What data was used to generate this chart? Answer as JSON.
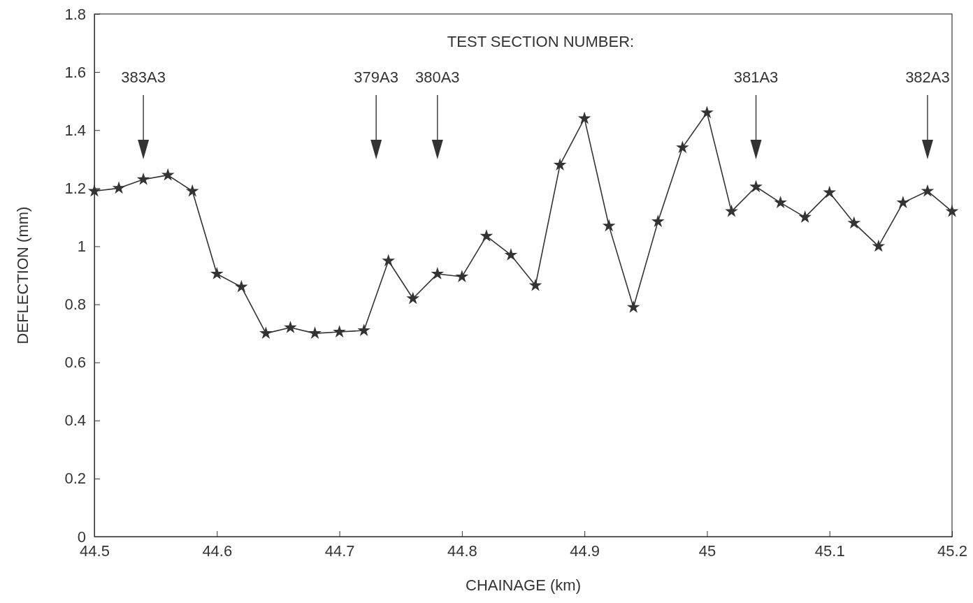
{
  "chart_data": {
    "type": "line",
    "xlabel": "CHAINAGE (km)",
    "ylabel": "DEFLECTION (mm)",
    "x": [
      44.5,
      44.52,
      44.54,
      44.56,
      44.58,
      44.6,
      44.62,
      44.64,
      44.66,
      44.68,
      44.7,
      44.72,
      44.74,
      44.76,
      44.78,
      44.8,
      44.82,
      44.84,
      44.86,
      44.88,
      44.9,
      44.92,
      44.94,
      44.96,
      44.98,
      45,
      45.02,
      45.04,
      45.06,
      45.08,
      45.1,
      45.12,
      45.14,
      45.16,
      45.18,
      45.2
    ],
    "series": [
      {
        "color": "#333333",
        "values": [
          1.19,
          1.2,
          1.23,
          1.245,
          1.19,
          0.905,
          0.86,
          0.7,
          0.72,
          0.7,
          0.705,
          0.71,
          0.95,
          0.82,
          0.905,
          0.895,
          1.035,
          0.97,
          0.865,
          1.28,
          1.44,
          1.07,
          0.79,
          1.085,
          1.34,
          1.46,
          1.12,
          1.205,
          1.15,
          1.1,
          1.185,
          1.08,
          1.0,
          1.15,
          1.19,
          1.12
        ]
      }
    ],
    "xlim": [
      44.5,
      45.2
    ],
    "xticks": [
      44.5,
      44.6,
      44.7,
      44.8,
      44.9,
      45,
      45.1,
      45.2
    ],
    "ylim": [
      0,
      1.8
    ],
    "yticks": [
      0,
      0.2,
      0.4,
      0.6,
      0.8,
      1,
      1.2,
      1.4,
      1.6,
      1.8
    ],
    "marker": "star",
    "line_style": "solid",
    "grid": false,
    "annotations": [
      "TEST SECTION NUMBER:"
    ],
    "ref_lines": [
      {
        "axis": "x",
        "value": 44.54,
        "label": "383A3"
      },
      {
        "axis": "x",
        "value": 44.73,
        "label": "379A3"
      },
      {
        "axis": "x",
        "value": 44.78,
        "label": "380A3"
      },
      {
        "axis": "x",
        "value": 45.04,
        "label": "381A3"
      },
      {
        "axis": "x",
        "value": 45.18,
        "label": "382A3"
      }
    ]
  }
}
